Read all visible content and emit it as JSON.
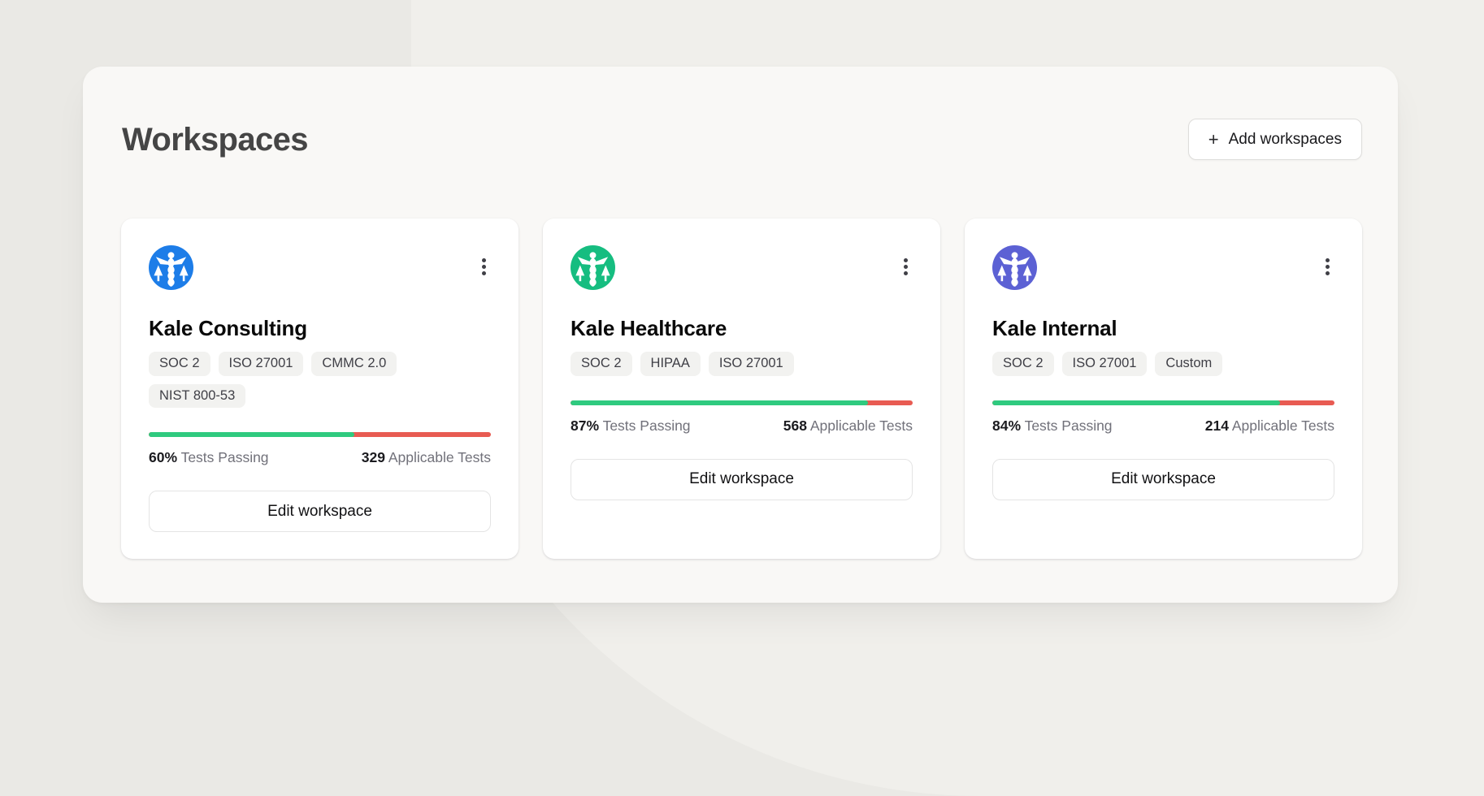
{
  "page": {
    "title": "Workspaces",
    "background_color": "#eae9e5",
    "panel_color": "#f9f8f6"
  },
  "header": {
    "add_button": {
      "icon": "+",
      "label": "Add workspaces"
    }
  },
  "labels": {
    "tests_passing": "Tests Passing",
    "applicable_tests": "Applicable Tests"
  },
  "colors": {
    "progress_green": "#2fca7f",
    "progress_red": "#e85b52",
    "logo_blue": "#1d7de8",
    "logo_green": "#16bd80",
    "logo_purple": "#5c61d4"
  },
  "workspaces": [
    {
      "name": "Kale Consulting",
      "logo_icon": "caduceus-logo",
      "logo_color": "#1d7de8",
      "tags": [
        "SOC 2",
        "ISO 27001",
        "CMMC 2.0",
        "NIST 800-53"
      ],
      "tests_passing_percent": "60%",
      "applicable_tests": "329",
      "edit_label": "Edit workspace"
    },
    {
      "name": "Kale Healthcare",
      "logo_icon": "caduceus-logo",
      "logo_color": "#16bd80",
      "tags": [
        "SOC 2",
        "HIPAA",
        "ISO 27001"
      ],
      "tests_passing_percent": "87%",
      "applicable_tests": "568",
      "edit_label": "Edit workspace"
    },
    {
      "name": "Kale Internal",
      "logo_icon": "caduceus-logo",
      "logo_color": "#5c61d4",
      "tags": [
        "SOC 2",
        "ISO 27001",
        "Custom"
      ],
      "tests_passing_percent": "84%",
      "applicable_tests": "214",
      "edit_label": "Edit workspace"
    }
  ]
}
